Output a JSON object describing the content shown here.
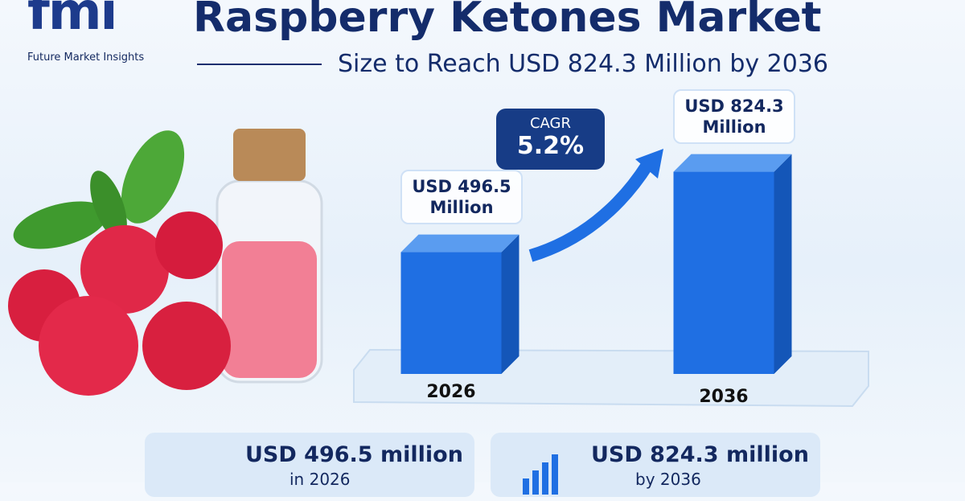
{
  "header": {
    "logo": "fmi",
    "brand": "Future Market Insights",
    "title": "Raspberry Ketones Market",
    "subtitle": "Size to Reach USD 824.3 Million by 2036"
  },
  "chart_data": {
    "type": "bar",
    "categories": [
      "2026",
      "2036"
    ],
    "values": [
      496.5,
      824.3
    ],
    "value_labels": [
      "USD 496.5 Million",
      "USD 824.3 Million"
    ],
    "color": "#1f6fe3"
  },
  "cagr": {
    "label": "CAGR",
    "value": "5.2%"
  },
  "cards": [
    {
      "value": "USD 496.5 million",
      "note": "in 2026"
    },
    {
      "value": "USD 824.3 million",
      "note": "by 2036"
    }
  ]
}
